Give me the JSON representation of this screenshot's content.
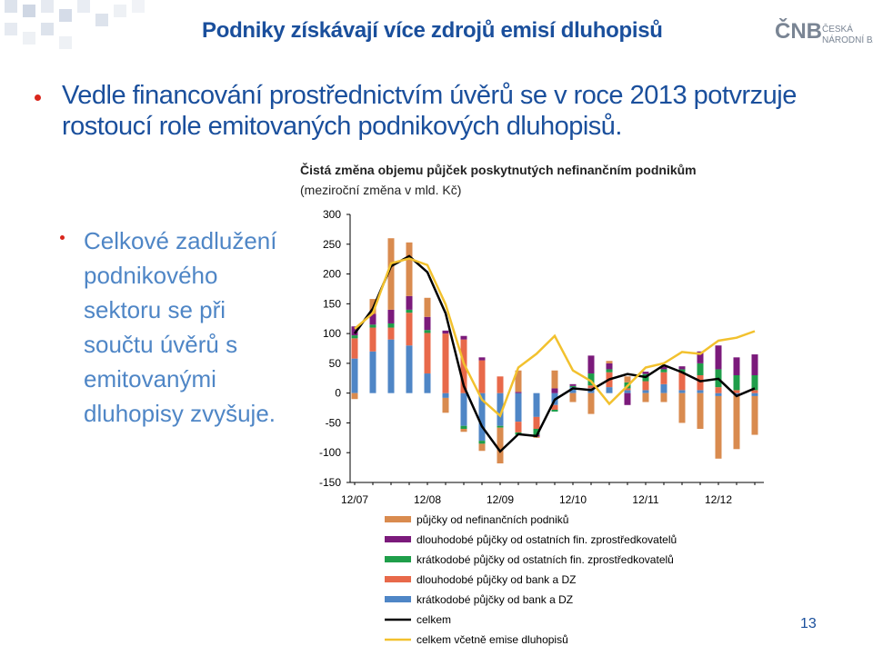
{
  "header": {
    "title": "Podniky získávají více zdrojů emisí dluhopisů"
  },
  "bullet": "Vedle financování prostřednictvím úvěrů se v roce 2013 potvrzuje rostoucí role emitovaných podnikových dluhopisů.",
  "sub_bullet": "Celkové zadlužení podnikového sektoru se při součtu úvěrů s emitovanými dluhopisy zvyšuje.",
  "logo": {
    "mark": "ČNB",
    "line1": "ČESKÁ",
    "line2": "NÁRODNÍ BANKA"
  },
  "page_number": "13",
  "chart_data": {
    "type": "bar",
    "stacked": true,
    "title": "Čistá změna objemu půjček poskytnutých nefinančním podnikům",
    "subtitle": "(meziroční změna v mld. Kč)",
    "categories": [
      "12/07",
      null,
      null,
      null,
      "12/08",
      null,
      null,
      null,
      "12/09",
      null,
      null,
      null,
      "12/10",
      null,
      null,
      null,
      "12/11",
      null,
      null,
      null,
      "12/12",
      null,
      null
    ],
    "ylim": [
      -150,
      300
    ],
    "yticks": [
      -150,
      -100,
      -50,
      0,
      50,
      100,
      150,
      200,
      250,
      300
    ],
    "grid": false,
    "legend": "bottom",
    "series": [
      {
        "name": "půjčky od nefinančních podniků",
        "type": "bar",
        "color": "#d98b4f",
        "values": [
          -10,
          25,
          120,
          90,
          32,
          -25,
          -5,
          -12,
          -60,
          36,
          -2,
          30,
          -15,
          -35,
          4,
          10,
          -15,
          -15,
          -50,
          -60,
          -105,
          -90,
          -65
        ]
      },
      {
        "name": "dlouhodobé půjčky od ostatních fin. zprostředkovatelů",
        "type": "bar",
        "color": "#7b1a7b",
        "values": [
          15,
          18,
          23,
          23,
          22,
          5,
          6,
          5,
          0,
          2,
          -3,
          8,
          3,
          30,
          10,
          -20,
          4,
          5,
          5,
          20,
          40,
          30,
          35
        ]
      },
      {
        "name": "krátkodobé půjčky od ostatních fin. zprostředkovatelů",
        "type": "bar",
        "color": "#1f9e4a",
        "values": [
          5,
          5,
          7,
          5,
          5,
          0,
          -5,
          -5,
          -3,
          -4,
          -10,
          -3,
          2,
          20,
          5,
          10,
          12,
          5,
          5,
          20,
          30,
          25,
          25
        ]
      },
      {
        "name": "dlouhodobé půjčky od bank a DZ",
        "type": "bar",
        "color": "#e8694a",
        "values": [
          34,
          40,
          20,
          55,
          68,
          100,
          90,
          55,
          28,
          -18,
          -20,
          -8,
          0,
          5,
          25,
          3,
          15,
          20,
          30,
          25,
          10,
          5,
          5
        ]
      },
      {
        "name": "krátkodobé půjčky od bank a DZ",
        "type": "bar",
        "color": "#4f86c6",
        "values": [
          58,
          70,
          90,
          80,
          33,
          -8,
          -55,
          -80,
          -55,
          -48,
          -40,
          -20,
          10,
          8,
          10,
          5,
          5,
          15,
          5,
          5,
          -5,
          -4,
          -5
        ]
      },
      {
        "name": "celkem",
        "type": "line",
        "color": "#000000",
        "values": [
          100,
          142,
          213,
          230,
          203,
          134,
          12,
          -56,
          -98,
          -69,
          -72,
          -11,
          8,
          5,
          23,
          32,
          27,
          47,
          35,
          20,
          24,
          -5,
          8
        ]
      },
      {
        "name": "celkem včetně emise dluhopisů",
        "type": "line",
        "color": "#f2c12e",
        "values": [
          108,
          134,
          218,
          226,
          215,
          149,
          50,
          -11,
          -38,
          43,
          66,
          96,
          38,
          20,
          -18,
          12,
          43,
          50,
          69,
          66,
          88,
          93,
          104
        ]
      }
    ]
  }
}
